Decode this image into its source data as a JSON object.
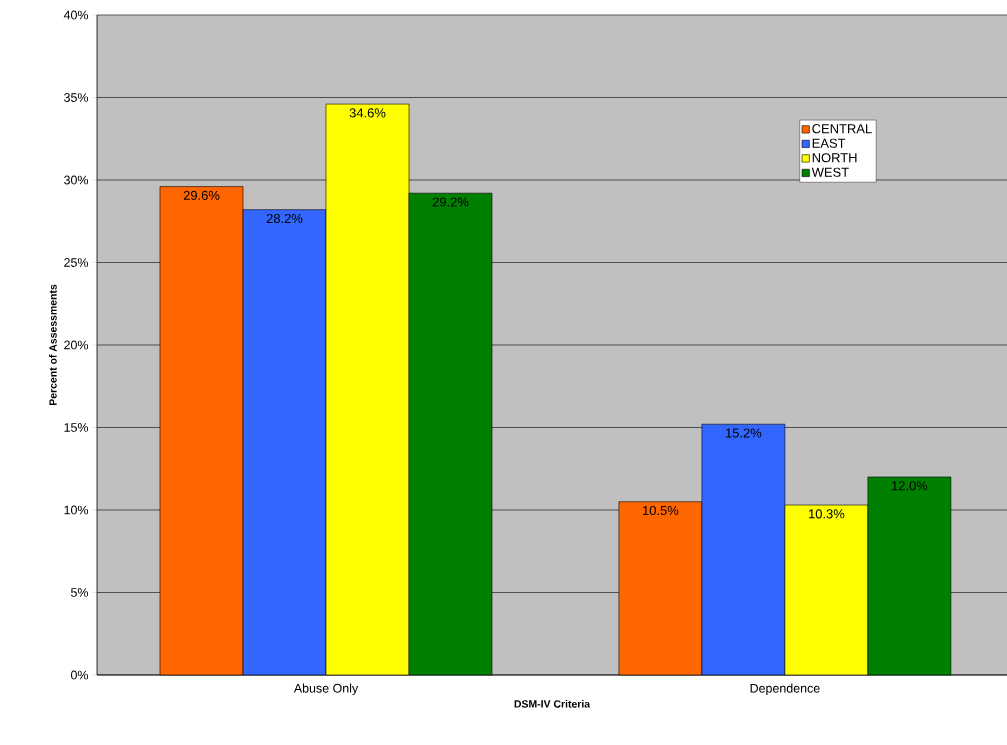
{
  "chart_data": {
    "type": "bar",
    "xlabel": "DSM-IV Criteria",
    "ylabel": "Percent of Assessments",
    "categories": [
      "Abuse Only",
      "Dependence"
    ],
    "series": [
      {
        "name": "CENTRAL",
        "color": "#ff6600",
        "values": [
          29.6,
          10.5
        ],
        "value_labels": [
          "29.6%",
          "10.5%"
        ]
      },
      {
        "name": "EAST",
        "color": "#3366ff",
        "values": [
          28.2,
          15.2
        ],
        "value_labels": [
          "28.2%",
          "15.2%"
        ]
      },
      {
        "name": "NORTH",
        "color": "#ffff00",
        "values": [
          34.6,
          10.3
        ],
        "value_labels": [
          "34.6%",
          "10.3%"
        ]
      },
      {
        "name": "WEST",
        "color": "#008000",
        "values": [
          29.2,
          12.0
        ],
        "value_labels": [
          "29.2%",
          "12.0%"
        ]
      }
    ],
    "ylim": [
      0,
      40
    ],
    "yticks": [
      {
        "value": 0,
        "label": "0%"
      },
      {
        "value": 5,
        "label": "5%"
      },
      {
        "value": 10,
        "label": "10%"
      },
      {
        "value": 15,
        "label": "15%"
      },
      {
        "value": 20,
        "label": "20%"
      },
      {
        "value": 25,
        "label": "25%"
      },
      {
        "value": 30,
        "label": "30%"
      },
      {
        "value": 35,
        "label": "35%"
      },
      {
        "value": 40,
        "label": "40%"
      }
    ],
    "grid": "y",
    "legend": "top right"
  }
}
